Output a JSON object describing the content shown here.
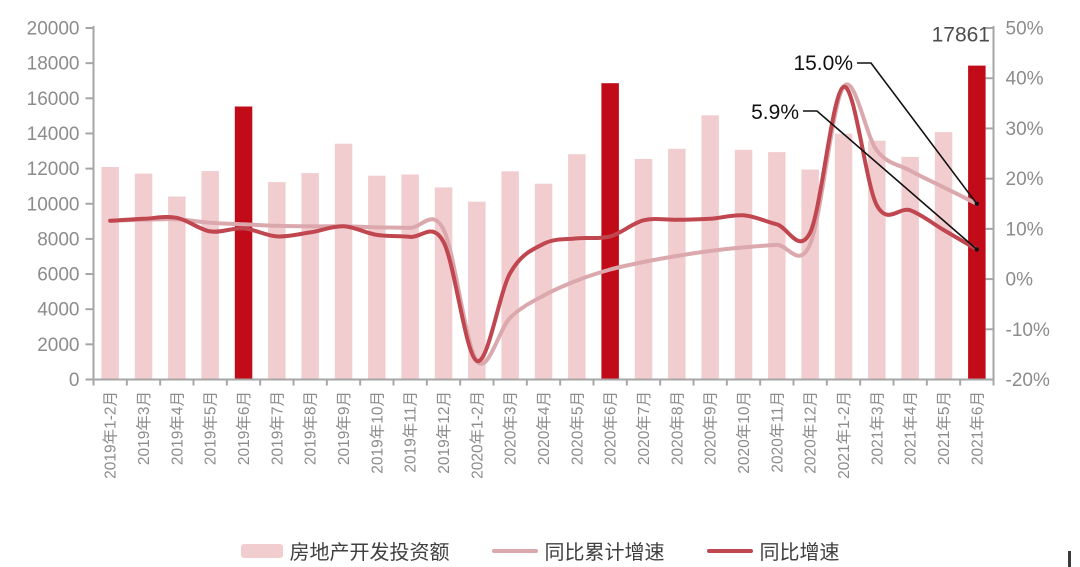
{
  "chart": {
    "legend": [
      {
        "label": "房地产开发投资额",
        "swatch": "bar",
        "color": "#f2cdd0"
      },
      {
        "label": "同比累计增速",
        "swatch": "line",
        "color": "#dba8ad"
      },
      {
        "label": "同比增速",
        "swatch": "line",
        "color": "#c0474f"
      }
    ],
    "colors": {
      "bar": "#f2cdd0",
      "bar_highlight": "#c10b18",
      "line_cumulative": "#dba8ad",
      "line_monthly": "#c0474f",
      "axis": "#a6a6a6",
      "tick_label": "#8c8c8c",
      "annotation_value": "#4d4d4d",
      "annotation_callout": "#111111",
      "corner_mark": "#3a3a3a"
    }
  },
  "chart_data": {
    "type": "bar+line",
    "categories": [
      "2019年1-2月",
      "2019年3月",
      "2019年4月",
      "2019年5月",
      "2019年6月",
      "2019年7月",
      "2019年8月",
      "2019年9月",
      "2019年10月",
      "2019年11月",
      "2019年12月",
      "2020年1-2月",
      "2020年3月",
      "2020年4月",
      "2020年5月",
      "2020年6月",
      "2020年7月",
      "2020年8月",
      "2020年9月",
      "2020年10月",
      "2020年11月",
      "2020年12月",
      "2021年1-2月",
      "2021年3月",
      "2021年4月",
      "2021年5月",
      "2021年6月"
    ],
    "series": [
      {
        "name": "房地产开发投资额",
        "type": "bar",
        "yaxis": "left",
        "values": [
          12090,
          11713,
          10414,
          11858,
          15534,
          11234,
          11746,
          13419,
          11595,
          11662,
          10929,
          10115,
          11848,
          11140,
          12817,
          16860,
          12545,
          13129,
          15030,
          13072,
          12936,
          11951,
          13986,
          13590,
          12664,
          14078,
          17861
        ],
        "highlight_indices": [
          4,
          15,
          26
        ]
      },
      {
        "name": "同比累计增速",
        "type": "line",
        "yaxis": "right",
        "values": [
          11.6,
          11.8,
          11.9,
          11.2,
          10.9,
          10.6,
          10.5,
          10.5,
          10.3,
          10.2,
          9.9,
          -16.3,
          -7.7,
          -3.3,
          -0.3,
          1.9,
          3.4,
          4.6,
          5.6,
          6.3,
          6.8,
          7.0,
          38.3,
          25.6,
          21.6,
          18.3,
          15.0
        ]
      },
      {
        "name": "同比增速",
        "type": "line",
        "yaxis": "right",
        "values": [
          11.6,
          12.0,
          12.2,
          9.5,
          10.1,
          8.5,
          9.3,
          10.5,
          8.8,
          8.4,
          7.4,
          -16.3,
          1.2,
          7.0,
          8.1,
          8.5,
          11.7,
          11.8,
          12.0,
          12.7,
          10.9,
          9.3,
          38.3,
          14.7,
          13.7,
          9.8,
          5.9
        ]
      }
    ],
    "left_axis": {
      "min": 0,
      "max": 20000,
      "step": 2000,
      "ticks": [
        "20000",
        "18000",
        "16000",
        "14000",
        "12000",
        "10000",
        "8000",
        "6000",
        "4000",
        "2000",
        "0"
      ]
    },
    "right_axis": {
      "min": -20,
      "max": 50,
      "step": 10,
      "ticks": [
        "50%",
        "40%",
        "30%",
        "20%",
        "10%",
        "0%",
        "-10%",
        "-20%"
      ]
    },
    "grid": false,
    "legend_position": "bottom",
    "annotations": [
      {
        "text": "17861",
        "target": "last-bar-value"
      },
      {
        "text": "15.0%",
        "target": "同比累计增速-final"
      },
      {
        "text": "5.9%",
        "target": "同比增速-final"
      }
    ]
  }
}
